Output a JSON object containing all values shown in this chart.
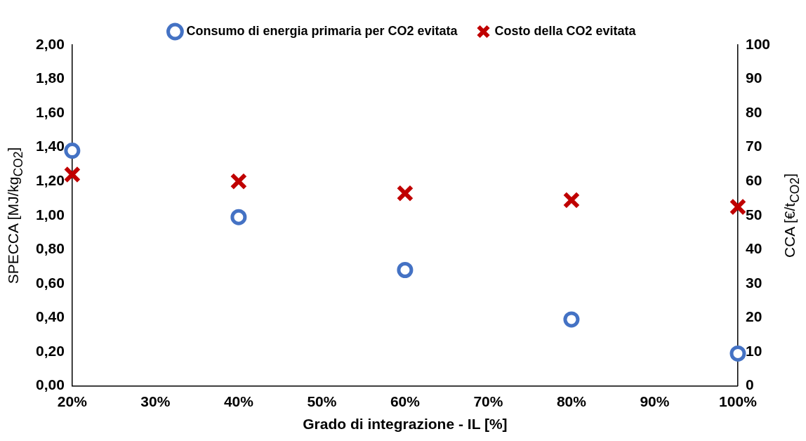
{
  "chart_data": {
    "type": "scatter",
    "xlabel": "Grado di integrazione - IL [%]",
    "ylabel": "SPECCA [MJ/kg$_{CO2}$]",
    "y2label": "CCA [€/t$_{CO2}$]",
    "x": [
      20,
      40,
      60,
      80,
      100
    ],
    "series": [
      {
        "name": "Consumo di energia primaria per CO2 evitata",
        "color": "#4472c4",
        "marker": "circle",
        "values": [
          1.38,
          0.99,
          0.68,
          0.39,
          0.19
        ]
      },
      {
        "name": "Costo della CO2 evitata",
        "color": "#c00000",
        "marker": "cross",
        "axis": "y2",
        "values": [
          62,
          60,
          56.5,
          54.5,
          52.5
        ]
      }
    ],
    "xlim": [
      20,
      100
    ],
    "xticks": [
      {
        "value": 20,
        "label": "20%"
      },
      {
        "value": 30,
        "label": "30%"
      },
      {
        "value": 40,
        "label": "40%"
      },
      {
        "value": 50,
        "label": "50%"
      },
      {
        "value": 60,
        "label": "60%"
      },
      {
        "value": 70,
        "label": "70%"
      },
      {
        "value": 80,
        "label": "80%"
      },
      {
        "value": 90,
        "label": "90%"
      },
      {
        "value": 100,
        "label": "100%"
      }
    ],
    "ylim": [
      0,
      2
    ],
    "yticks": [
      {
        "value": 0,
        "label": "0,00"
      },
      {
        "value": 0.2,
        "label": "0,20"
      },
      {
        "value": 0.4,
        "label": "0,40"
      },
      {
        "value": 0.6,
        "label": "0,60"
      },
      {
        "value": 0.8,
        "label": "0,80"
      },
      {
        "value": 1,
        "label": "1,00"
      },
      {
        "value": 1.2,
        "label": "1,20"
      },
      {
        "value": 1.4,
        "label": "1,40"
      },
      {
        "value": 1.6,
        "label": "1,60"
      },
      {
        "value": 1.8,
        "label": "1,80"
      },
      {
        "value": 2,
        "label": "2,00"
      }
    ],
    "y2lim": [
      0,
      100
    ],
    "y2ticks": [
      0,
      10,
      20,
      30,
      40,
      50,
      60,
      70,
      80,
      90,
      100
    ],
    "grid": false,
    "legend": "top"
  }
}
